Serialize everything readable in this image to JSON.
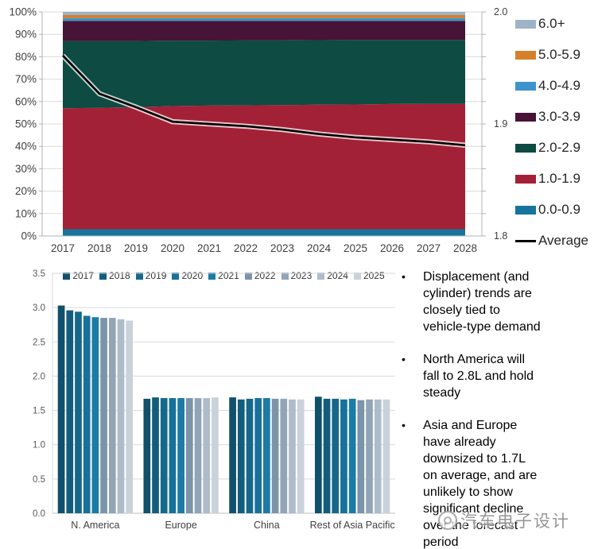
{
  "chart_data": [
    {
      "type": "area",
      "stacking": "percent",
      "title": "",
      "x": [
        "2017",
        "2018",
        "2019",
        "2020",
        "2021",
        "2022",
        "2023",
        "2024",
        "2025",
        "2026",
        "2027",
        "2028"
      ],
      "series": [
        {
          "name": "0.0-0.9",
          "color": "#17749c",
          "values": [
            3,
            3,
            3,
            3,
            3,
            3,
            3,
            3,
            3,
            3,
            3,
            3
          ]
        },
        {
          "name": "1.0-1.9",
          "color": "#a32136",
          "values": [
            54,
            54.2,
            54.5,
            55,
            55.2,
            55.3,
            55.4,
            55.6,
            55.7,
            55.9,
            56,
            56
          ]
        },
        {
          "name": "2.0-2.9",
          "color": "#0d4b43",
          "values": [
            30,
            29.8,
            29.5,
            29.2,
            29,
            29,
            28.9,
            28.8,
            28.8,
            28.6,
            28.5,
            28.5
          ]
        },
        {
          "name": "3.0-3.9",
          "color": "#471337",
          "values": [
            9,
            9,
            9,
            8.8,
            8.8,
            8.7,
            8.7,
            8.6,
            8.5,
            8.5,
            8.5,
            8.5
          ]
        },
        {
          "name": "4.0-4.9",
          "color": "#3e93cd",
          "values": [
            1.2,
            1.2,
            1.2,
            1.2,
            1.2,
            1.2,
            1.2,
            1.2,
            1.2,
            1.2,
            1.2,
            1.2
          ]
        },
        {
          "name": "5.0-5.9",
          "color": "#d5802b",
          "values": [
            1.4,
            1.4,
            1.4,
            1.4,
            1.4,
            1.4,
            1.4,
            1.4,
            1.4,
            1.4,
            1.4,
            1.4
          ]
        },
        {
          "name": "6.0+",
          "color": "#9fb3c7",
          "values": [
            1.4,
            1.4,
            1.4,
            1.4,
            1.4,
            1.4,
            1.4,
            1.4,
            1.4,
            1.4,
            1.4,
            1.4
          ]
        }
      ],
      "line_series": {
        "name": "Average",
        "color": "#000000",
        "axis": "right",
        "values": [
          1.961,
          1.927,
          1.915,
          1.902,
          1.9,
          1.898,
          1.895,
          1.891,
          1.888,
          1.886,
          1.884,
          1.881
        ]
      },
      "axis_left": {
        "unit": "%",
        "ticks": [
          0,
          10,
          20,
          30,
          40,
          50,
          60,
          70,
          80,
          90,
          100
        ]
      },
      "axis_right": {
        "min": 1.8,
        "max": 2.0,
        "ticks": [
          1.8,
          1.9,
          2.0
        ],
        "minor_step": 0.02
      },
      "legend_position": "right",
      "grid": true,
      "legend": [
        {
          "label": "6.0+",
          "color": "#9fb3c7",
          "type": "box"
        },
        {
          "label": "5.0-5.9",
          "color": "#d5802b",
          "type": "box"
        },
        {
          "label": "4.0-4.9",
          "color": "#3e93cd",
          "type": "box"
        },
        {
          "label": "3.0-3.9",
          "color": "#471337",
          "type": "box"
        },
        {
          "label": "2.0-2.9",
          "color": "#0d4b43",
          "type": "box"
        },
        {
          "label": "1.0-1.9",
          "color": "#a32136",
          "type": "box"
        },
        {
          "label": "0.0-0.9",
          "color": "#17749c",
          "type": "box"
        },
        {
          "label": "Average",
          "color": "#000000",
          "type": "line"
        }
      ]
    },
    {
      "type": "bar",
      "grouped": true,
      "title": "",
      "categories": [
        "N. America",
        "Europe",
        "China",
        "Rest of Asia Pacific"
      ],
      "series": [
        {
          "name": "2017",
          "color": "#11506b",
          "values": [
            3.03,
            1.67,
            1.69,
            1.7
          ]
        },
        {
          "name": "2018",
          "color": "#135d7c",
          "values": [
            2.96,
            1.69,
            1.66,
            1.67
          ]
        },
        {
          "name": "2019",
          "color": "#16688b",
          "values": [
            2.94,
            1.68,
            1.67,
            1.67
          ]
        },
        {
          "name": "2020",
          "color": "#18719a",
          "values": [
            2.88,
            1.68,
            1.68,
            1.66
          ]
        },
        {
          "name": "2021",
          "color": "#1b7ba6",
          "values": [
            2.86,
            1.68,
            1.68,
            1.67
          ]
        },
        {
          "name": "2022",
          "color": "#7b94a9",
          "values": [
            2.85,
            1.68,
            1.67,
            1.65
          ]
        },
        {
          "name": "2023",
          "color": "#91a5b7",
          "values": [
            2.85,
            1.68,
            1.67,
            1.66
          ]
        },
        {
          "name": "2024",
          "color": "#aebcc9",
          "values": [
            2.83,
            1.68,
            1.66,
            1.66
          ]
        },
        {
          "name": "2025",
          "color": "#c9d2da",
          "values": [
            2.81,
            1.69,
            1.66,
            1.66
          ]
        }
      ],
      "ylim": [
        0,
        3.5
      ],
      "ytick_step": 0.5,
      "legend_position": "top",
      "grid": true
    }
  ],
  "bullets": [
    {
      "marker": "•",
      "text": "Displacement (and\ncylinder) trends are\nclosely tied to\nvehicle-type demand"
    },
    {
      "marker": "•",
      "text": "North America will\nfall to 2.8L and hold\nsteady"
    },
    {
      "marker": "•",
      "text": "Asia and Europe\nhave already\ndownsized to 1.7L\non average, and are\nunlikely to show\nsignificant decline\nover the forecast\nperiod"
    }
  ],
  "watermark": {
    "text": "汽车电子设计",
    "color": "#8f8f8f"
  }
}
